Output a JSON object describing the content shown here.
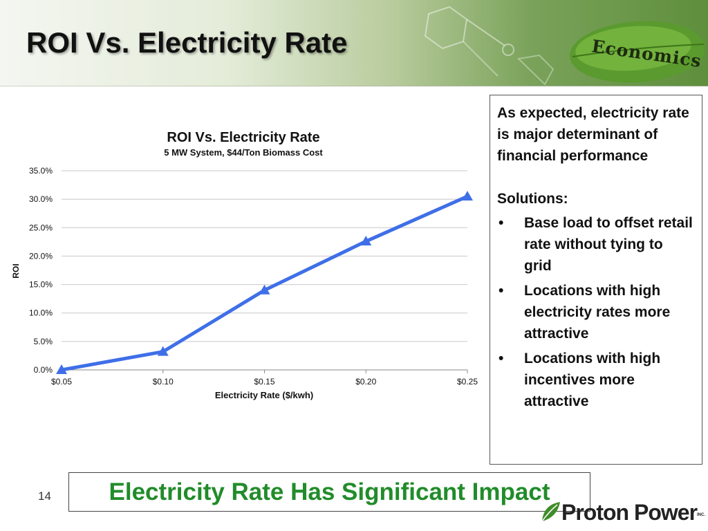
{
  "slide": {
    "title": "ROI Vs. Electricity Rate",
    "section_label": "Economics",
    "page_number": "14",
    "callout": "Electricity Rate Has Significant Impact"
  },
  "notes": {
    "intro": "As expected, electricity rate is major determinant of financial performance",
    "solutions_heading": "Solutions:",
    "solutions": [
      "Base load to offset retail rate without tying to grid",
      "Locations with high electricity rates more attractive",
      "Locations with high incentives more attractive"
    ]
  },
  "logo": {
    "text": "Proton Power",
    "suffix": "INC."
  },
  "colors": {
    "series": "#3f6fe8",
    "callout_text": "#218c2a",
    "leaf": "#5a9a2e"
  },
  "chart_data": {
    "type": "line",
    "title": "ROI Vs. Electricity Rate",
    "subtitle": "5 MW System, $44/Ton Biomass Cost",
    "xlabel": "Electricity Rate ($/kwh)",
    "ylabel": "ROI",
    "categories": [
      "$0.05",
      "$0.10",
      "$0.15",
      "$0.20",
      "$0.25"
    ],
    "series": [
      {
        "values": [
          0.0,
          3.2,
          14.0,
          22.6,
          30.5
        ]
      }
    ],
    "yticks": [
      "0.0%",
      "5.0%",
      "10.0%",
      "15.0%",
      "20.0%",
      "25.0%",
      "30.0%",
      "35.0%"
    ],
    "ylim": [
      0,
      35
    ],
    "grid": true,
    "marker": "triangle"
  }
}
